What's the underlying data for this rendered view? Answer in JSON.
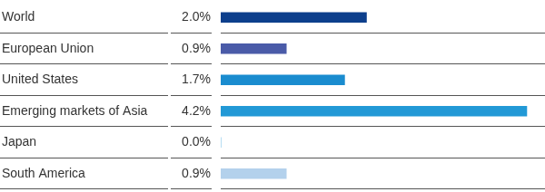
{
  "chart_data": {
    "type": "bar",
    "orientation": "horizontal",
    "categories": [
      "World",
      "European Union",
      "United States",
      "Emerging markets of Asia",
      "Japan",
      "South America"
    ],
    "values": [
      2.0,
      0.9,
      1.7,
      4.2,
      0.0,
      0.9
    ],
    "value_labels": [
      "2.0%",
      "0.9%",
      "1.7%",
      "4.2%",
      "0.0%",
      "0.9%"
    ],
    "colors": [
      "#0d3f8c",
      "#4a5ba8",
      "#1a8ccf",
      "#2299d6",
      "#2299d6",
      "#b3d1ec"
    ],
    "xlim": [
      0,
      4.45
    ],
    "data_labels": true,
    "tick_labels": false,
    "grid": false
  }
}
